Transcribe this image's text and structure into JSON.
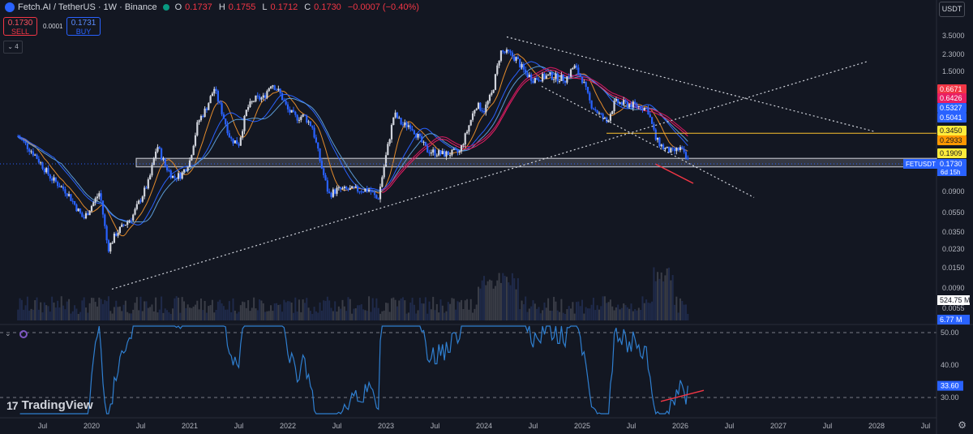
{
  "header": {
    "symbol": "Fetch.AI / TetherUS · 1W · Binance",
    "open_label": "O",
    "open": "0.1737",
    "high_label": "H",
    "high": "0.1755",
    "low_label": "L",
    "low": "0.1712",
    "close_label": "C",
    "close": "0.1730",
    "change": "−0.0007 (−0.40%)"
  },
  "trade": {
    "sell_price": "0.1730",
    "sell_label": "SELL",
    "spread": "0.0001",
    "buy_price": "0.1731",
    "buy_label": "BUY"
  },
  "indicators_toggle": "4",
  "currency_button": "USDT",
  "brand": "TradingView",
  "rsi_icon": "eye-icon",
  "colors": {
    "background": "#131722",
    "up_candle": "#d1d4dc",
    "down_candle": "#2962ff",
    "ema_orange": "#e38b2c",
    "ma_red": "#c2185b",
    "ma_blue": "#2962ff",
    "rsi_line": "#2f7fd0",
    "divergence": "#f23645",
    "support_band": "#d1d4dc",
    "resistance_line": "#fbc02d"
  },
  "chart_data": [
    {
      "type": "candlestick",
      "scale": "log",
      "x_tick_labels": [
        "Jul",
        "2020",
        "Jul",
        "2021",
        "Jul",
        "2022",
        "Jul",
        "2023",
        "Jul",
        "2024",
        "Jul",
        "2025",
        "Jul",
        "2026",
        "Jul",
        "2027",
        "Jul",
        "2028",
        "Jul"
      ],
      "y_tick_labels": [
        "3.5000",
        "2.3000",
        "1.5000",
        "0.0900",
        "0.0550",
        "0.0350",
        "0.0230",
        "0.0150",
        "0.0090",
        "0.0055"
      ],
      "price_tags": [
        {
          "value": "0.6671",
          "color": "#f23645"
        },
        {
          "value": "0.6426",
          "color": "#e91e63"
        },
        {
          "value": "0.5327",
          "color": "#2962ff"
        },
        {
          "value": "0.5041",
          "color": "#2962ff"
        },
        {
          "value": "0.3450",
          "color": "#ffeb3b"
        },
        {
          "value": "0.2933",
          "color": "#ff9800"
        },
        {
          "value": "0.1909",
          "color": "#ffeb3b"
        },
        {
          "value": "0.1730",
          "color": "#2962ff"
        }
      ],
      "symbol_tag": "FETUSDT",
      "countdown": "6d 15h",
      "volume_tags": [
        "524.75 M",
        "6.77 M"
      ],
      "weekly_close_path": [
        [
          "2019-04",
          0.32
        ],
        [
          "2019-06",
          0.21
        ],
        [
          "2019-08",
          0.12
        ],
        [
          "2019-10",
          0.085
        ],
        [
          "2019-12",
          0.045
        ],
        [
          "2020-02",
          0.085
        ],
        [
          "2020-03",
          0.022
        ],
        [
          "2020-04",
          0.032
        ],
        [
          "2020-06",
          0.048
        ],
        [
          "2020-08",
          0.11
        ],
        [
          "2020-09",
          0.26
        ],
        [
          "2020-10",
          0.16
        ],
        [
          "2020-11",
          0.12
        ],
        [
          "2020-12",
          0.13
        ],
        [
          "2021-01",
          0.18
        ],
        [
          "2021-02",
          0.45
        ],
        [
          "2021-03",
          0.62
        ],
        [
          "2021-04",
          1.0
        ],
        [
          "2021-05",
          0.55
        ],
        [
          "2021-06",
          0.3
        ],
        [
          "2021-07",
          0.27
        ],
        [
          "2021-08",
          0.62
        ],
        [
          "2021-09",
          0.78
        ],
        [
          "2021-10",
          0.8
        ],
        [
          "2021-11",
          1.15
        ],
        [
          "2021-12",
          0.9
        ],
        [
          "2022-01",
          0.6
        ],
        [
          "2022-02",
          0.5
        ],
        [
          "2022-03",
          0.52
        ],
        [
          "2022-04",
          0.4
        ],
        [
          "2022-05",
          0.17
        ],
        [
          "2022-06",
          0.08
        ],
        [
          "2022-07",
          0.09
        ],
        [
          "2022-09",
          0.09
        ],
        [
          "2022-11",
          0.09
        ],
        [
          "2022-12",
          0.07
        ],
        [
          "2023-01",
          0.2
        ],
        [
          "2023-02",
          0.55
        ],
        [
          "2023-03",
          0.42
        ],
        [
          "2023-04",
          0.42
        ],
        [
          "2023-06",
          0.23
        ],
        [
          "2023-08",
          0.21
        ],
        [
          "2023-10",
          0.22
        ],
        [
          "2023-11",
          0.38
        ],
        [
          "2023-12",
          0.68
        ],
        [
          "2024-01",
          0.6
        ],
        [
          "2024-02",
          0.9
        ],
        [
          "2024-03",
          2.4
        ],
        [
          "2024-04",
          2.3
        ],
        [
          "2024-05",
          2.0
        ],
        [
          "2024-06",
          1.45
        ],
        [
          "2024-07",
          1.25
        ],
        [
          "2024-08",
          1.3
        ],
        [
          "2024-09",
          1.35
        ],
        [
          "2024-10",
          1.3
        ],
        [
          "2024-11",
          1.25
        ],
        [
          "2024-12",
          1.7
        ],
        [
          "2025-01",
          1.25
        ],
        [
          "2025-02",
          0.7
        ],
        [
          "2025-03",
          0.55
        ],
        [
          "2025-04",
          0.45
        ],
        [
          "2025-05",
          0.72
        ],
        [
          "2025-06",
          0.7
        ],
        [
          "2025-07",
          0.68
        ],
        [
          "2025-08",
          0.65
        ],
        [
          "2025-09",
          0.62
        ],
        [
          "2025-10",
          0.3
        ],
        [
          "2025-11",
          0.24
        ],
        [
          "2025-12",
          0.22
        ],
        [
          "2026-01",
          0.24
        ],
        [
          "2026-02",
          0.173
        ]
      ],
      "annotations": [
        "descending trendline",
        "ascending trendline",
        "support zone",
        "resistance 0.3450",
        "bullish divergence"
      ]
    },
    {
      "type": "line",
      "name": "RSI",
      "y_tick_labels": [
        "50.00",
        "40.00",
        "33.60",
        "30.00"
      ],
      "levels": [
        50,
        30
      ],
      "current": "33.60"
    }
  ]
}
